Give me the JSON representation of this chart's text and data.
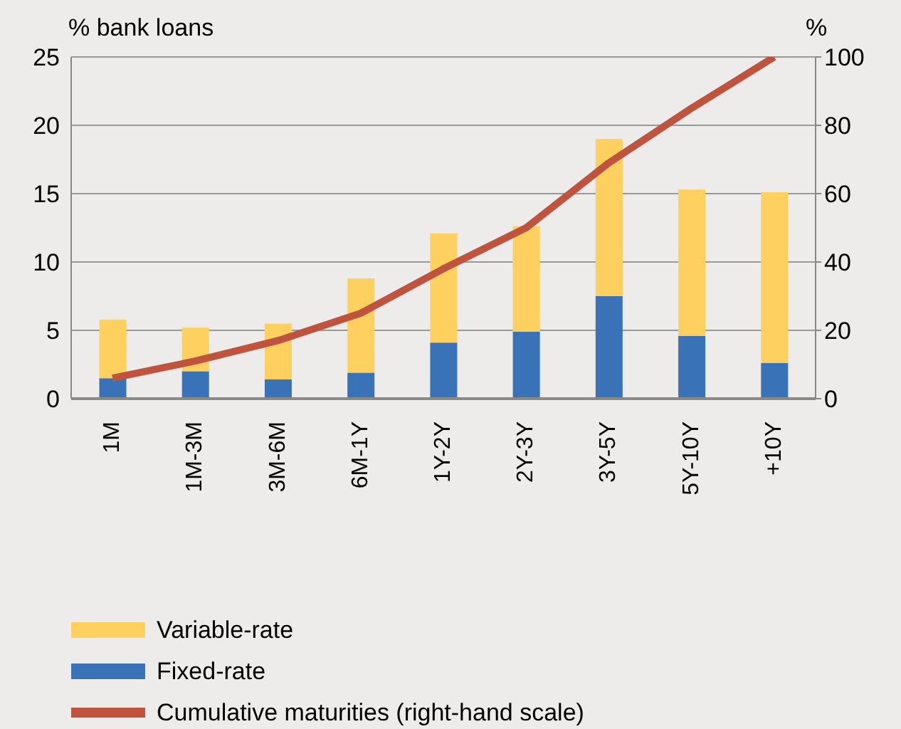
{
  "chart_data": {
    "type": "bar",
    "ylabel": "% bank loans",
    "y2label": "%",
    "categories": [
      "1M",
      "1M-3M",
      "3M-6M",
      "6M-1Y",
      "1Y-2Y",
      "2Y-3Y",
      "3Y-5Y",
      "5Y-10Y",
      "+10Y"
    ],
    "series": [
      {
        "name": "Fixed-rate",
        "color": "#3a72b8",
        "values": [
          1.5,
          2.0,
          1.4,
          1.9,
          4.1,
          4.9,
          7.5,
          4.6,
          2.6
        ]
      },
      {
        "name": "Variable-rate",
        "color": "#fdd060",
        "values": [
          4.3,
          3.2,
          4.1,
          6.9,
          8.0,
          7.7,
          11.5,
          10.7,
          12.5
        ]
      },
      {
        "name": "Cumulative maturities (right-hand scale)",
        "type": "line",
        "axis": "y2",
        "color": "#c0533e",
        "values": [
          6,
          11,
          17,
          25,
          38,
          50,
          69,
          85,
          100
        ]
      }
    ],
    "stacked": true,
    "ylim": [
      0,
      25
    ],
    "yticks": [
      0,
      5,
      10,
      15,
      20,
      25
    ],
    "y2lim": [
      0,
      100
    ],
    "y2ticks": [
      0,
      20,
      40,
      60,
      80,
      100
    ],
    "grid": "y",
    "legend": "bottom left"
  }
}
